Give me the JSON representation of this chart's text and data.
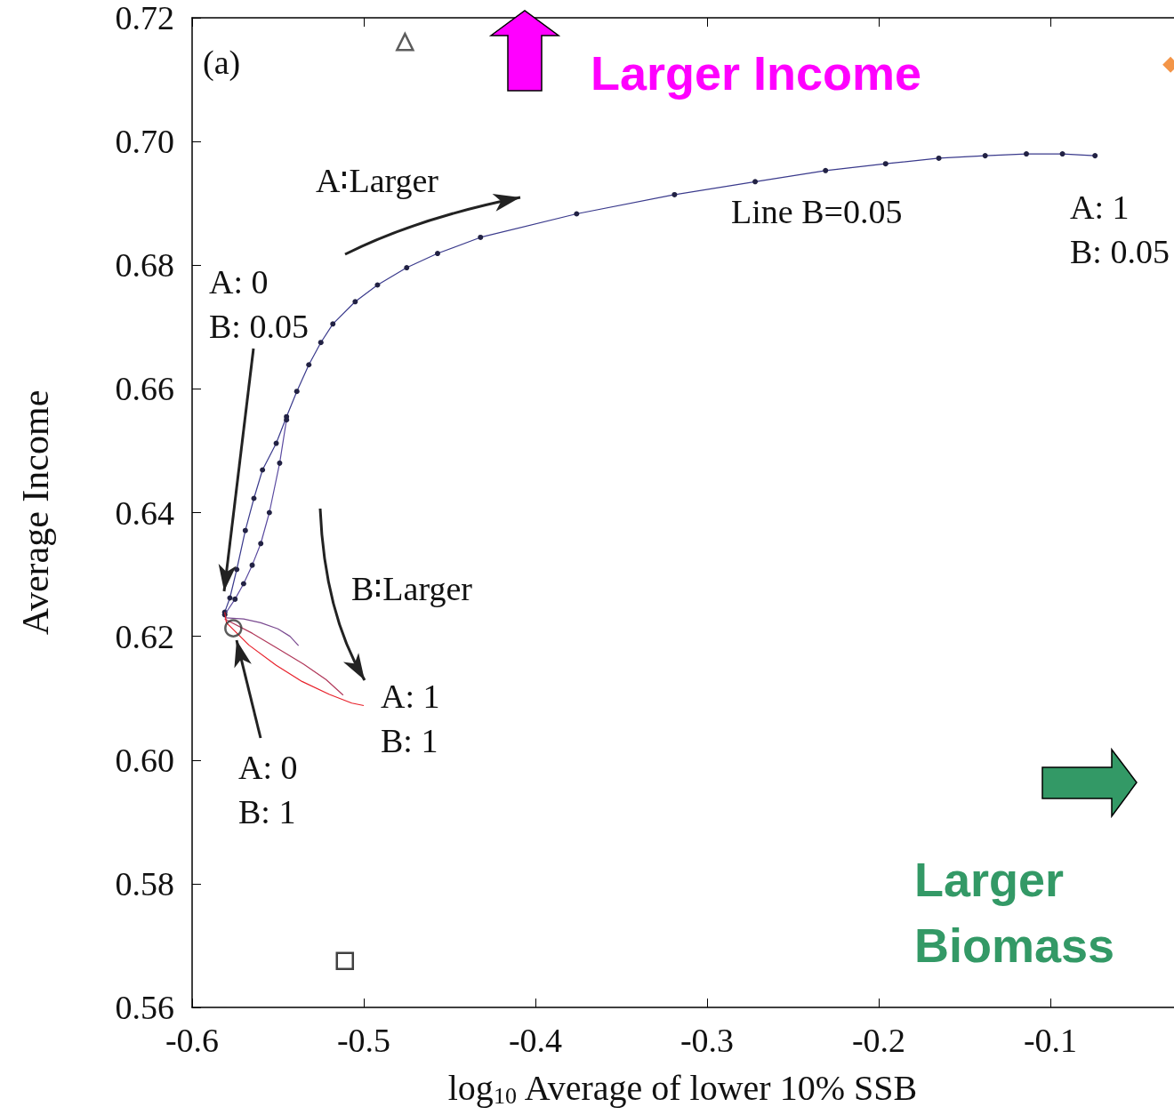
{
  "chart_data": {
    "type": "line",
    "xlabel": "log$_{10}$ Average of lower 10% SSB",
    "ylabel": "Average Income",
    "xlim": [
      -0.6,
      -0.028
    ],
    "xticks": [
      -0.6,
      -0.5,
      -0.4,
      -0.3,
      -0.2,
      -0.1
    ],
    "ylim": [
      0.56,
      0.72
    ],
    "yticks": [
      0.56,
      0.58,
      {
        "value": 0.6,
        "label": "0.60"
      },
      0.62,
      0.64,
      0.66,
      0.68,
      {
        "value": 0.7,
        "label": "0.70"
      },
      0.72
    ],
    "grid": false,
    "legend": false,
    "line_style": "solid",
    "series": [
      {
        "color": "#3a3a8c",
        "marker": "circle",
        "x": [
          -0.581,
          -0.578,
          -0.574,
          -0.569,
          -0.564,
          -0.559,
          -0.551,
          -0.545,
          -0.539,
          -0.532,
          -0.525,
          -0.518,
          -0.505,
          -0.492,
          -0.475,
          -0.457,
          -0.432,
          -0.376,
          -0.319,
          -0.272,
          -0.231,
          -0.196,
          -0.165,
          -0.138,
          -0.114,
          -0.093,
          -0.074
        ],
        "values": [
          0.6239,
          0.6262,
          0.6308,
          0.6371,
          0.6423,
          0.6469,
          0.6512,
          0.6555,
          0.6596,
          0.6639,
          0.6675,
          0.6705,
          0.6741,
          0.6768,
          0.6796,
          0.6819,
          0.6845,
          0.6883,
          0.6914,
          0.6935,
          0.6953,
          0.6964,
          0.6973,
          0.6977,
          0.698,
          0.698,
          0.6977
        ]
      },
      {
        "color": "#5a4aa0",
        "marker": "circle",
        "x": [
          -0.581,
          -0.575,
          -0.57,
          -0.565,
          -0.56,
          -0.555,
          -0.549,
          -0.545
        ],
        "values": [
          0.6235,
          0.626,
          0.6285,
          0.6315,
          0.635,
          0.64,
          0.648,
          0.655
        ]
      },
      {
        "color": "#7a4a90",
        "marker": "none",
        "x": [
          -0.581,
          -0.57,
          -0.56,
          -0.55,
          -0.543,
          -0.538
        ],
        "values": [
          0.623,
          0.6228,
          0.6222,
          0.6212,
          0.62,
          0.6185
        ]
      },
      {
        "color": "#b0385a",
        "marker": "none",
        "x": [
          -0.581,
          -0.565,
          -0.55,
          -0.535,
          -0.522,
          -0.512
        ],
        "values": [
          0.6228,
          0.6205,
          0.618,
          0.6155,
          0.613,
          0.6105
        ]
      },
      {
        "color": "#e8202a",
        "marker": "none",
        "x": [
          -0.581,
          -0.58,
          -0.567,
          -0.551,
          -0.536,
          -0.52,
          -0.507,
          -0.5
        ],
        "values": [
          0.6239,
          0.6222,
          0.6186,
          0.6153,
          0.6127,
          0.6106,
          0.6092,
          0.6088
        ]
      },
      {
        "type": "scatter",
        "marker": "triangle",
        "color": "#333333",
        "x": [
          -0.476
        ],
        "values": [
          0.7161
        ]
      },
      {
        "type": "scatter",
        "marker": "square",
        "color": "#111111",
        "x": [
          -0.511
        ],
        "values": [
          0.5675
        ]
      },
      {
        "type": "scatter",
        "marker": "circle",
        "color": "#333333",
        "x": [
          -0.576
        ],
        "values": [
          0.6213
        ]
      },
      {
        "type": "scatter",
        "marker": "diamond",
        "color": "#f07a1a",
        "x": [
          -0.03
        ],
        "values": [
          0.7124
        ]
      }
    ],
    "annotations": [
      "(a)",
      "A∶Larger",
      "Line B=0.05",
      "A: 1\nB: 0.05",
      "A: 0\nB: 0.05",
      "B∶Larger",
      "A: 1\nB: 1",
      "A: 0\nB: 1",
      "Larger Income",
      "Larger\nBiomass"
    ]
  }
}
